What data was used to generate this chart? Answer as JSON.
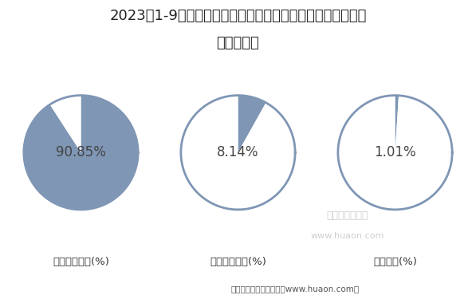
{
  "title_line1": "2023年1-9月福建国有及国有控股建筑业工程、安装工程及其",
  "title_line2": "他产值结构",
  "categories": [
    "建筑工程产值(%)",
    "安装工程产值(%)",
    "其他产值(%)"
  ],
  "values": [
    90.85,
    8.14,
    1.01
  ],
  "labels": [
    "90.85%",
    "8.14%",
    "1.01%"
  ],
  "filled_color": "#7f96b5",
  "empty_color": "#ffffff",
  "border_color": "#7f96b5",
  "background_color": "#ffffff",
  "title_fontsize": 13,
  "label_fontsize": 12,
  "category_fontsize": 9.5,
  "footer": "制图：华经产业研究院（www.huaon.com）",
  "watermark_line1": "华经产业研究院",
  "watermark_line2": "www.huaon.com",
  "label_color": "#444444"
}
